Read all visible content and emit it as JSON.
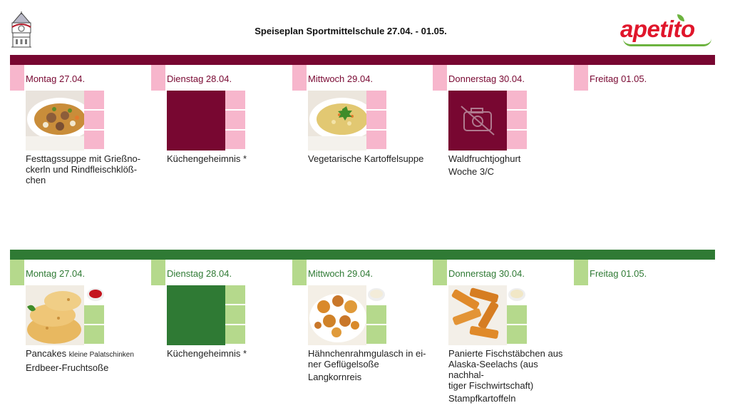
{
  "header": {
    "title": "Speiseplan Sportmittelschule 27.04. - 01.05.",
    "brand": "apetito"
  },
  "colors": {
    "menu1": "#780731",
    "menu1_light": "#f7b6cc",
    "menu2": "#2f7a34",
    "menu2_light": "#b5d98c"
  },
  "menu1": {
    "days": [
      {
        "label": "Montag 27.04.",
        "dish_lines": [
          "Festtagssuppe mit Grießno-",
          "ckerln und Rindfleischklöß-",
          "chen"
        ],
        "image": "soup-meatballs-photo"
      },
      {
        "label": "Dienstag 28.04.",
        "dish_lines": [
          "Küchengeheimnis *"
        ],
        "image": "placeholder"
      },
      {
        "label": "Mittwoch 29.04.",
        "dish_lines": [
          "Vegetarische Kartoffelsuppe"
        ],
        "image": "potato-soup-photo"
      },
      {
        "label": "Donnerstag 30.04.",
        "dish_lines": [
          "Waldfruchtjoghurt",
          "Woche 3/C"
        ],
        "image": "no-photo-icon"
      },
      {
        "label": "Freitag 01.05.",
        "dish_lines": [],
        "image": ""
      }
    ]
  },
  "menu2": {
    "days": [
      {
        "label": "Montag 27.04.",
        "dish_main": "Pancakes",
        "dish_small": "kleine Palatschinken",
        "dish_lines": [
          "Erdbeer-Fruchtsoße"
        ],
        "image": "pancakes-photo"
      },
      {
        "label": "Dienstag 28.04.",
        "dish_lines": [
          "Küchengeheimnis *"
        ],
        "image": "placeholder"
      },
      {
        "label": "Mittwoch 29.04.",
        "dish_lines": [
          "Hähnchenrahmgulasch in ei-",
          "ner Geflügelsoße",
          "Langkornreis"
        ],
        "image": "chicken-goulash-photo"
      },
      {
        "label": "Donnerstag 30.04.",
        "dish_lines": [
          "Panierte Fischstäbchen aus",
          "Alaska-Seelachs (aus nachhal-",
          "tiger Fischwirtschaft)",
          "Stampfkartoffeln"
        ],
        "image": "fish-sticks-photo"
      },
      {
        "label": "Freitag 01.05.",
        "dish_lines": [],
        "image": ""
      }
    ]
  }
}
